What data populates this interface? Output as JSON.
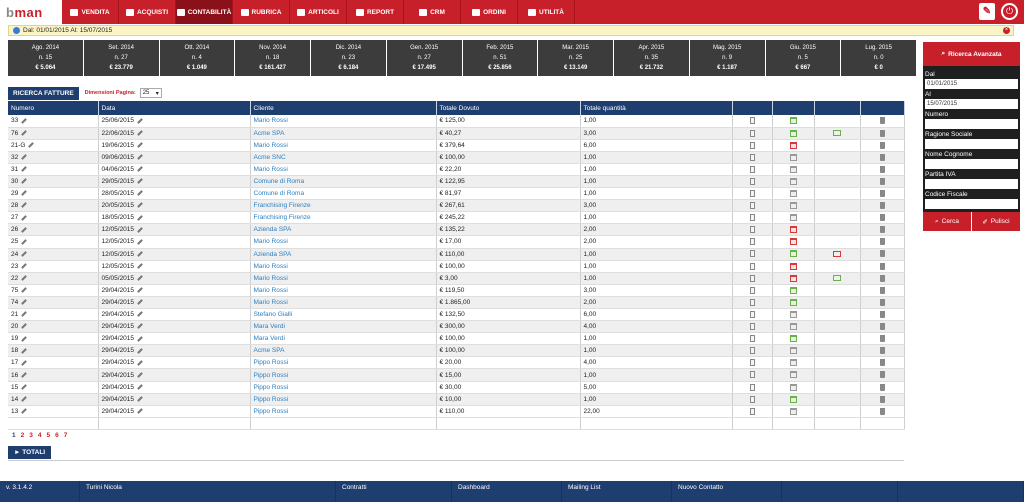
{
  "brand": {
    "logo_b": "b",
    "logo_rest": "man"
  },
  "nav": [
    {
      "label": "VENDITA",
      "icon": "cart-icon"
    },
    {
      "label": "ACQUISTI",
      "icon": "truck-icon"
    },
    {
      "label": "CONTABILITÀ",
      "icon": "document-icon",
      "active": true
    },
    {
      "label": "RUBRICA",
      "icon": "user-icon"
    },
    {
      "label": "ARTICOLI",
      "icon": "barcode-icon"
    },
    {
      "label": "REPORT",
      "icon": "folder-icon"
    },
    {
      "label": "CRM",
      "icon": "handshake-icon"
    },
    {
      "label": "ORDINI",
      "icon": "grid-icon"
    },
    {
      "label": "UTILITÀ",
      "icon": "info-icon"
    }
  ],
  "alert": {
    "text": "Dal: 01/01/2015 Al: 15/07/2015"
  },
  "months": [
    {
      "title": "Ago. 2014",
      "count": "n. 15",
      "amount": "€ 5.064"
    },
    {
      "title": "Set. 2014",
      "count": "n. 27",
      "amount": "€ 23.779"
    },
    {
      "title": "Ott. 2014",
      "count": "n. 4",
      "amount": "€ 1.049"
    },
    {
      "title": "Nov. 2014",
      "count": "n. 18",
      "amount": "€ 161.427"
    },
    {
      "title": "Dic. 2014",
      "count": "n. 23",
      "amount": "€ 6.184"
    },
    {
      "title": "Gen. 2015",
      "count": "n. 27",
      "amount": "€ 17.495"
    },
    {
      "title": "Feb. 2015",
      "count": "n. 51",
      "amount": "€ 25.856"
    },
    {
      "title": "Mar. 2015",
      "count": "n. 25",
      "amount": "€ 13.149"
    },
    {
      "title": "Apr. 2015",
      "count": "n. 35",
      "amount": "€ 21.732"
    },
    {
      "title": "Mag. 2015",
      "count": "n. 9",
      "amount": "€ 1.187"
    },
    {
      "title": "Giu. 2015",
      "count": "n. 5",
      "amount": "€ 667"
    },
    {
      "title": "Lug. 2015",
      "count": "n. 0",
      "amount": "€ 0"
    }
  ],
  "search": {
    "tab_label": "RICERCA FATTURE",
    "page_size_label": "Dimensioni Pagina:",
    "page_size": "25"
  },
  "table": {
    "headers": [
      "Numero",
      "Data",
      "Cliente",
      "Totale Dovuto",
      "Totale quantità"
    ],
    "rows": [
      {
        "num": "33",
        "date": "25/06/2015",
        "client": "Mario Rossi",
        "total": "€ 125,00",
        "qty": "1,00",
        "cal": "green",
        "mail": ""
      },
      {
        "num": "76",
        "date": "22/06/2015",
        "client": "Acme SPA",
        "total": "€ 40,27",
        "qty": "3,00",
        "cal": "green",
        "mail": "green"
      },
      {
        "num": "21-G",
        "date": "19/06/2015",
        "client": "Mario Rossi",
        "total": "€ 379,64",
        "qty": "6,00",
        "cal": "red",
        "mail": ""
      },
      {
        "num": "32",
        "date": "09/06/2015",
        "client": "Acme SNC",
        "total": "€ 100,00",
        "qty": "1,00",
        "cal": "gray",
        "mail": ""
      },
      {
        "num": "31",
        "date": "04/06/2015",
        "client": "Mario Rossi",
        "total": "€ 22,20",
        "qty": "1,00",
        "cal": "gray",
        "mail": ""
      },
      {
        "num": "30",
        "date": "29/05/2015",
        "client": "Comune di Roma",
        "total": "€ 122,95",
        "qty": "1,00",
        "cal": "gray",
        "mail": ""
      },
      {
        "num": "29",
        "date": "28/05/2015",
        "client": "Comune di Roma",
        "total": "€ 81,97",
        "qty": "1,00",
        "cal": "gray",
        "mail": ""
      },
      {
        "num": "28",
        "date": "20/05/2015",
        "client": "Franchising Firenze",
        "total": "€ 267,61",
        "qty": "3,00",
        "cal": "gray",
        "mail": ""
      },
      {
        "num": "27",
        "date": "18/05/2015",
        "client": "Franchising Firenze",
        "total": "€ 245,22",
        "qty": "1,00",
        "cal": "gray",
        "mail": ""
      },
      {
        "num": "26",
        "date": "12/05/2015",
        "client": "Azienda SPA",
        "total": "€ 135,22",
        "qty": "2,00",
        "cal": "red",
        "mail": ""
      },
      {
        "num": "25",
        "date": "12/05/2015",
        "client": "Mario Rossi",
        "total": "€ 17,00",
        "qty": "2,00",
        "cal": "red",
        "mail": ""
      },
      {
        "num": "24",
        "date": "12/05/2015",
        "client": "Azienda SPA",
        "total": "€ 110,00",
        "qty": "1,00",
        "cal": "green",
        "mail": "red"
      },
      {
        "num": "23",
        "date": "12/05/2015",
        "client": "Mario Rossi",
        "total": "€ 100,00",
        "qty": "1,00",
        "cal": "red",
        "mail": ""
      },
      {
        "num": "22",
        "date": "05/05/2015",
        "client": "Mario Rossi",
        "total": "€ 3,00",
        "qty": "1,00",
        "cal": "red",
        "mail": "green"
      },
      {
        "num": "75",
        "date": "29/04/2015",
        "client": "Mario Rossi",
        "total": "€ 119,50",
        "qty": "3,00",
        "cal": "green",
        "mail": ""
      },
      {
        "num": "74",
        "date": "29/04/2015",
        "client": "Mario Rossi",
        "total": "€ 1.865,00",
        "qty": "2,00",
        "cal": "green",
        "mail": ""
      },
      {
        "num": "21",
        "date": "29/04/2015",
        "client": "Stefano Gialli",
        "total": "€ 132,50",
        "qty": "6,00",
        "cal": "gray",
        "mail": ""
      },
      {
        "num": "20",
        "date": "29/04/2015",
        "client": "Mara Verdi",
        "total": "€ 300,00",
        "qty": "4,00",
        "cal": "gray",
        "mail": ""
      },
      {
        "num": "19",
        "date": "29/04/2015",
        "client": "Mara Verdi",
        "total": "€ 100,00",
        "qty": "1,00",
        "cal": "green",
        "mail": ""
      },
      {
        "num": "18",
        "date": "29/04/2015",
        "client": "Acme SPA",
        "total": "€ 100,00",
        "qty": "1,00",
        "cal": "gray",
        "mail": ""
      },
      {
        "num": "17",
        "date": "29/04/2015",
        "client": "Pippo Rossi",
        "total": "€ 20,00",
        "qty": "4,00",
        "cal": "gray",
        "mail": ""
      },
      {
        "num": "16",
        "date": "29/04/2015",
        "client": "Pippo Rossi",
        "total": "€ 15,00",
        "qty": "1,00",
        "cal": "gray",
        "mail": ""
      },
      {
        "num": "15",
        "date": "29/04/2015",
        "client": "Pippo Rossi",
        "total": "€ 30,00",
        "qty": "5,00",
        "cal": "gray",
        "mail": ""
      },
      {
        "num": "14",
        "date": "29/04/2015",
        "client": "Pippo Rossi",
        "total": "€ 10,00",
        "qty": "1,00",
        "cal": "green",
        "mail": ""
      },
      {
        "num": "13",
        "date": "29/04/2015",
        "client": "Pippo Rossi",
        "total": "€ 110,00",
        "qty": "22,00",
        "cal": "gray",
        "mail": ""
      }
    ]
  },
  "pagination": {
    "pages": [
      "1",
      "2",
      "3",
      "4",
      "5",
      "6",
      "7"
    ],
    "current": "1"
  },
  "totals": {
    "label": "► TOTALI"
  },
  "side": {
    "title": "Ricerca Avanzata",
    "fields": [
      {
        "label": "Dal",
        "value": "01/01/2015"
      },
      {
        "label": "Al",
        "value": "15/07/2015"
      },
      {
        "label": "Numero",
        "value": ""
      },
      {
        "label": "Ragione Sociale",
        "value": ""
      },
      {
        "label": "Nome Cognome",
        "value": ""
      },
      {
        "label": "Partita IVA",
        "value": ""
      },
      {
        "label": "Codice Fiscale",
        "value": ""
      }
    ],
    "search_label": "Cerca",
    "clear_label": "Pulisci"
  },
  "footer": [
    {
      "label": "v. 3.1.4.2",
      "w": 80
    },
    {
      "label": "Turini Nicola",
      "w": 256
    },
    {
      "label": "Contratti",
      "w": 116
    },
    {
      "label": "Dashboard",
      "w": 110
    },
    {
      "label": "Mailing List",
      "w": 110
    },
    {
      "label": "Nuovo Contatto",
      "w": 110
    },
    {
      "label": "",
      "w": 116
    },
    {
      "label": "",
      "w": 126
    }
  ]
}
